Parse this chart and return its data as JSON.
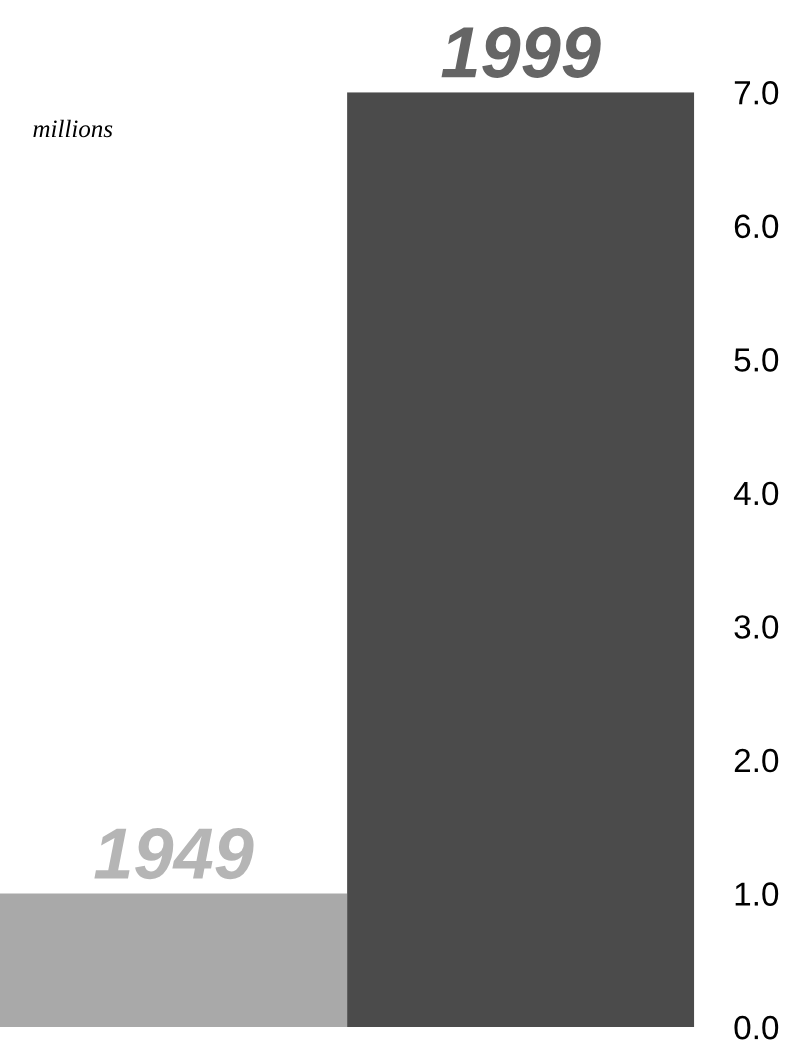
{
  "chart_data": {
    "type": "bar",
    "ylabel": "millions",
    "categories": [
      "1949",
      "1999"
    ],
    "values": [
      1.0,
      7.0
    ],
    "colors": [
      "#a9a9a9",
      "#4b4b4b"
    ],
    "ylim": [
      0,
      7
    ],
    "yticks": [
      {
        "value": 0,
        "label": "0.0"
      },
      {
        "value": 1,
        "label": "1.0"
      },
      {
        "value": 2,
        "label": "2.0"
      },
      {
        "value": 3,
        "label": "3.0"
      },
      {
        "value": 4,
        "label": "4.0"
      },
      {
        "value": 5,
        "label": "5.0"
      },
      {
        "value": 6,
        "label": "6.0"
      },
      {
        "value": 7,
        "label": "7.0"
      }
    ],
    "grid": false,
    "legend": false
  }
}
